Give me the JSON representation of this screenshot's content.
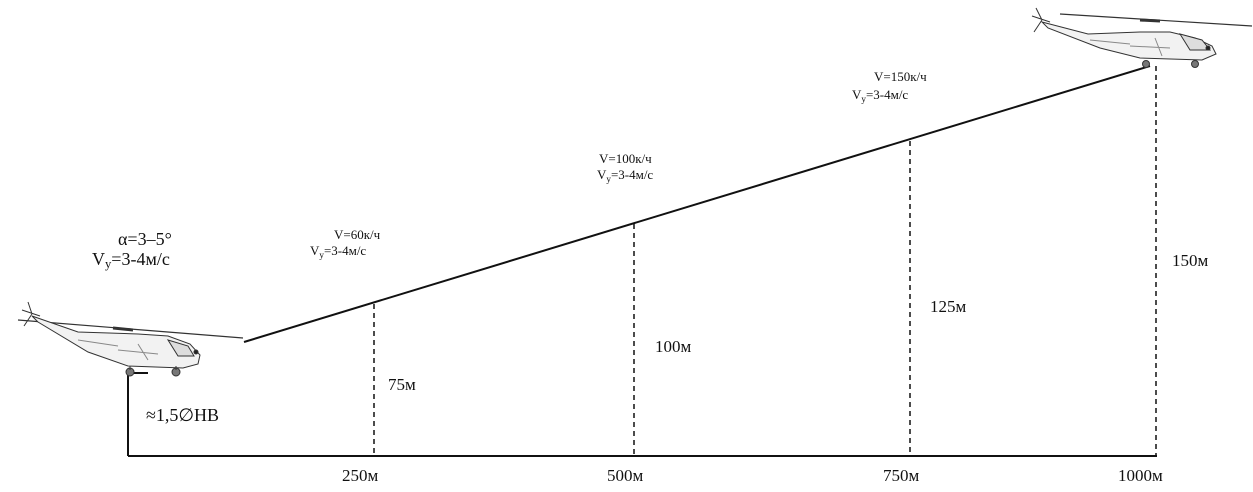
{
  "start": {
    "angle_label": "α=3–5°",
    "vy_prefix": "V",
    "vy_sub": "y",
    "vy_value": "=3-4м/с",
    "height_label": "≈1,5∅НВ"
  },
  "points": [
    {
      "distance": "250м",
      "height": "75м",
      "speed": "V=60к/ч",
      "vy_prefix": "V",
      "vy_sub": "y",
      "vy_value": "=3-4м/с"
    },
    {
      "distance": "500м",
      "height": "100м",
      "speed": "V=100к/ч",
      "vy_prefix": "V",
      "vy_sub": "y",
      "vy_value": "=3-4м/с"
    },
    {
      "distance": "750м",
      "height": "125м",
      "speed": "V=150к/ч",
      "vy_prefix": "V",
      "vy_sub": "y",
      "vy_value": "=3-4м/с"
    },
    {
      "distance": "1000м",
      "height": "150м"
    }
  ],
  "icons": {
    "start_aircraft": "helicopter-icon",
    "end_aircraft": "helicopter-icon"
  }
}
